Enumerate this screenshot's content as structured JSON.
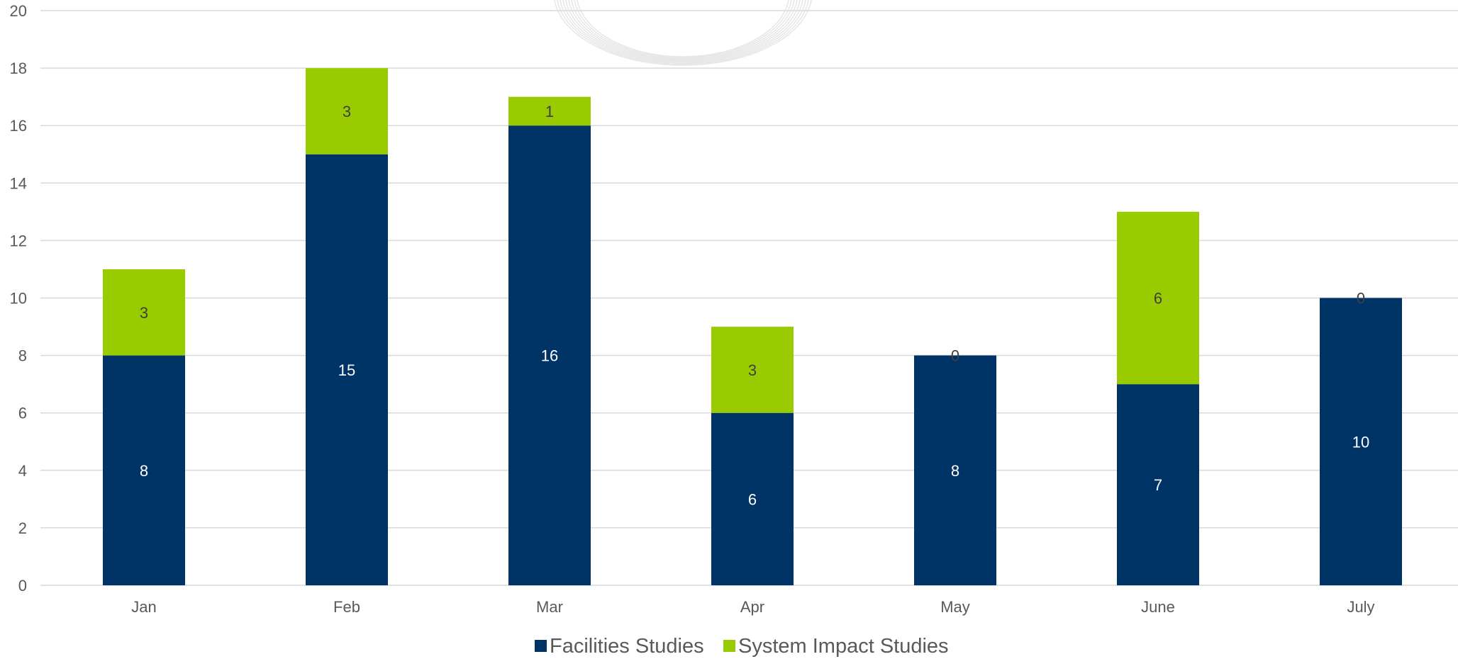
{
  "chart_data": {
    "type": "bar",
    "stacked": true,
    "categories": [
      "Jan",
      "Feb",
      "Mar",
      "Apr",
      "May",
      "June",
      "July"
    ],
    "series": [
      {
        "name": "Facilities Studies",
        "values": [
          8,
          15,
          16,
          6,
          8,
          7,
          10
        ],
        "color": "#003366",
        "label_color": "#ffffff"
      },
      {
        "name": "System Impact Studies",
        "values": [
          3,
          3,
          1,
          3,
          0,
          6,
          0
        ],
        "color": "#99cc00",
        "label_color": "#404040"
      }
    ],
    "title": "",
    "xlabel": "",
    "ylabel": "",
    "ylim": [
      0,
      20
    ],
    "yticks": [
      0,
      2,
      4,
      6,
      8,
      10,
      12,
      14,
      16,
      18,
      20
    ],
    "grid": true,
    "legend_position": "bottom",
    "colors": {
      "gridline": "#d9d9d9",
      "text": "#595959",
      "watermark": "#e6e6e6"
    }
  }
}
